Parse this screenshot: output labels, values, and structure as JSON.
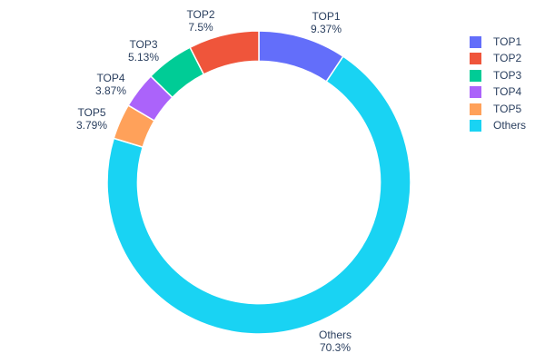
{
  "chart_data": {
    "type": "pie",
    "subtype": "donut",
    "hole": 0.8,
    "title": "",
    "legend_position": "right",
    "text_color": "#2a3f5f",
    "background": "#ffffff",
    "slices": [
      {
        "label": "TOP1",
        "value": 9.37,
        "pct_label": "9.37%",
        "color": "#636EFA"
      },
      {
        "label": "TOP2",
        "value": 7.5,
        "pct_label": "7.5%",
        "color": "#EF553B"
      },
      {
        "label": "TOP3",
        "value": 5.13,
        "pct_label": "5.13%",
        "color": "#00CC96"
      },
      {
        "label": "TOP4",
        "value": 3.87,
        "pct_label": "3.87%",
        "color": "#AB63FA"
      },
      {
        "label": "TOP5",
        "value": 3.79,
        "pct_label": "3.79%",
        "color": "#FFA15A"
      },
      {
        "label": "Others",
        "value": 70.3,
        "pct_label": "70.3%",
        "color": "#19D3F3"
      }
    ]
  }
}
